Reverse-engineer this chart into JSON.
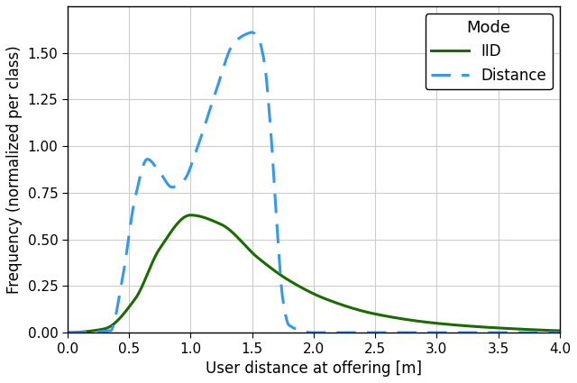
{
  "title": "",
  "xlabel": "User distance at offering [m]",
  "ylabel": "Frequency (normalized per class)",
  "xlim": [
    0.0,
    4.0
  ],
  "ylim": [
    0.0,
    1.75
  ],
  "yticks": [
    0.0,
    0.25,
    0.5,
    0.75,
    1.0,
    1.25,
    1.5
  ],
  "xticks": [
    0.0,
    0.5,
    1.0,
    1.5,
    2.0,
    2.5,
    3.0,
    3.5,
    4.0
  ],
  "iid_color": "#1a6b00",
  "dist_color": "#3399ee",
  "legend_title": "Mode",
  "legend_labels": [
    "IID",
    "Distance"
  ],
  "figsize": [
    6.4,
    4.25
  ],
  "dpi": 100,
  "iid_knots_x": [
    0.0,
    0.3,
    0.55,
    0.75,
    1.0,
    1.25,
    1.55,
    1.8,
    2.1,
    2.5,
    3.0,
    3.5,
    4.0
  ],
  "iid_knots_y": [
    0.0,
    0.02,
    0.18,
    0.45,
    0.63,
    0.58,
    0.4,
    0.28,
    0.18,
    0.1,
    0.05,
    0.025,
    0.01
  ],
  "dist_knots_x": [
    0.0,
    0.35,
    0.45,
    0.55,
    0.65,
    0.75,
    0.85,
    0.95,
    1.05,
    1.2,
    1.35,
    1.45,
    1.5,
    1.55,
    1.6,
    1.65,
    1.7,
    1.75,
    1.8,
    2.0,
    4.0
  ],
  "dist_knots_y": [
    0.0,
    0.01,
    0.3,
    0.72,
    0.93,
    0.86,
    0.78,
    0.82,
    0.98,
    1.28,
    1.55,
    1.6,
    1.61,
    1.58,
    1.45,
    1.1,
    0.6,
    0.18,
    0.04,
    0.0,
    0.0
  ]
}
